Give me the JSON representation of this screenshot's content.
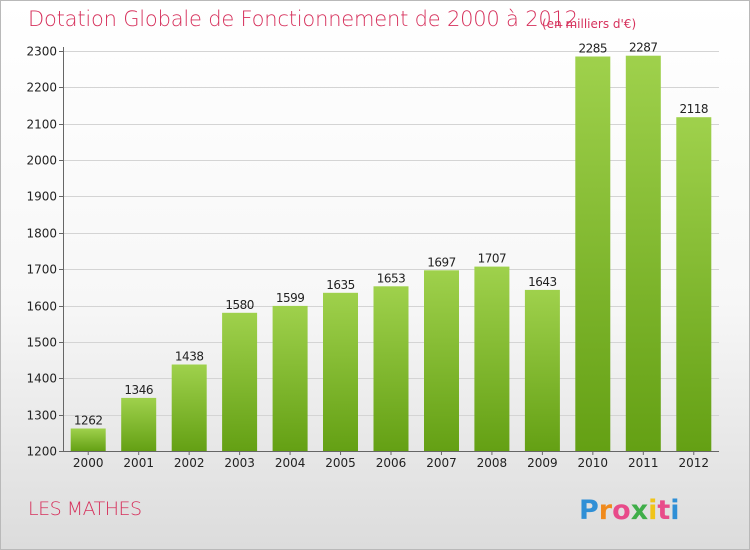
{
  "title": "Dotation Globale de Fonctionnement de 2000 à 2012",
  "unit_note": "(en milliers d'€)",
  "commune": "LES MATHES",
  "brand": "Proxiti",
  "colors": {
    "title": "#d6315c",
    "bar_top": "#9fd14c",
    "bar_bottom": "#64a014",
    "grid": "#d4d4d4"
  },
  "chart_data": {
    "type": "bar",
    "title": "Dotation Globale de Fonctionnement de 2000 à 2012",
    "subtitle": "(en milliers d'€)",
    "categories": [
      "2000",
      "2001",
      "2002",
      "2003",
      "2004",
      "2005",
      "2006",
      "2007",
      "2008",
      "2009",
      "2010",
      "2011",
      "2012"
    ],
    "values": [
      1262,
      1346,
      1438,
      1580,
      1599,
      1635,
      1653,
      1697,
      1707,
      1643,
      2285,
      2287,
      2118
    ],
    "ylim": [
      1200,
      2300
    ],
    "yticks": [
      1200,
      1300,
      1400,
      1500,
      1600,
      1700,
      1800,
      1900,
      2000,
      2100,
      2200,
      2300
    ],
    "grid": true,
    "data_labels": true
  }
}
